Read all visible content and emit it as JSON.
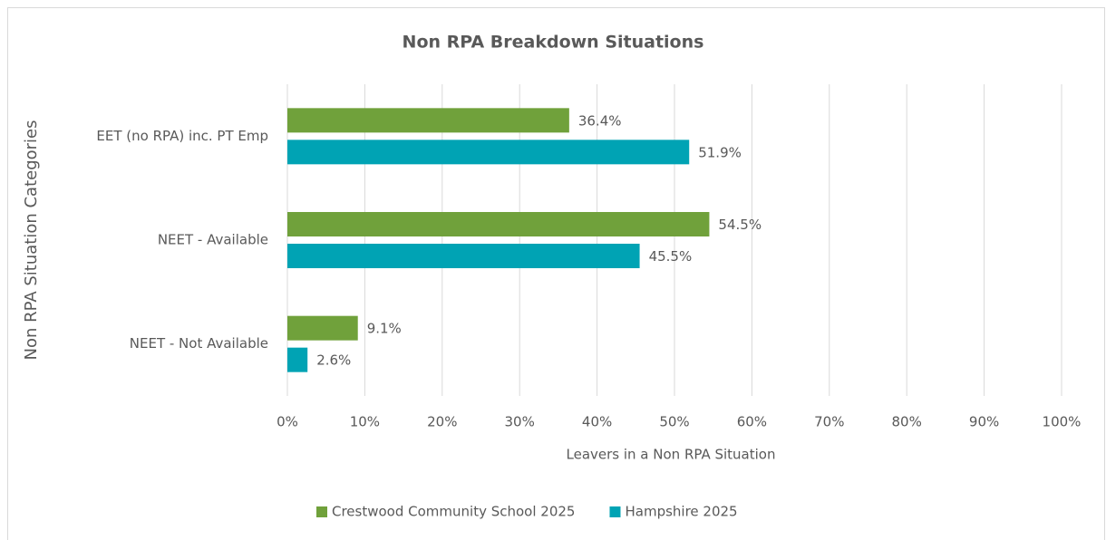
{
  "chart_data": {
    "type": "bar",
    "orientation": "horizontal",
    "title": "Non RPA Breakdown Situations",
    "x_label": "Leavers in a Non RPA Situation",
    "y_label": "Non RPA Situation Categories",
    "categories": [
      "EET (no RPA) inc. PT Emp",
      "NEET - Available",
      "NEET - Not Available"
    ],
    "series": [
      {
        "name": "Crestwood Community School 2025",
        "color": "#70a13b",
        "values": [
          36.4,
          54.5,
          9.1
        ],
        "value_labels": [
          "36.4%",
          "54.5%",
          "9.1%"
        ]
      },
      {
        "name": "Hampshire 2025",
        "color": "#00a3b4",
        "values": [
          51.9,
          45.5,
          2.6
        ],
        "value_labels": [
          "51.9%",
          "45.5%",
          "2.6%"
        ]
      }
    ],
    "xlim": [
      0,
      100
    ],
    "xticks": [
      {
        "value": 0,
        "label": "0%"
      },
      {
        "value": 10,
        "label": "10%"
      },
      {
        "value": 20,
        "label": "20%"
      },
      {
        "value": 30,
        "label": "30%"
      },
      {
        "value": 40,
        "label": "40%"
      },
      {
        "value": 50,
        "label": "50%"
      },
      {
        "value": 60,
        "label": "60%"
      },
      {
        "value": 70,
        "label": "70%"
      },
      {
        "value": 80,
        "label": "80%"
      },
      {
        "value": 90,
        "label": "90%"
      },
      {
        "value": 100,
        "label": "100%"
      }
    ],
    "grid": true,
    "legend": "bottom"
  }
}
